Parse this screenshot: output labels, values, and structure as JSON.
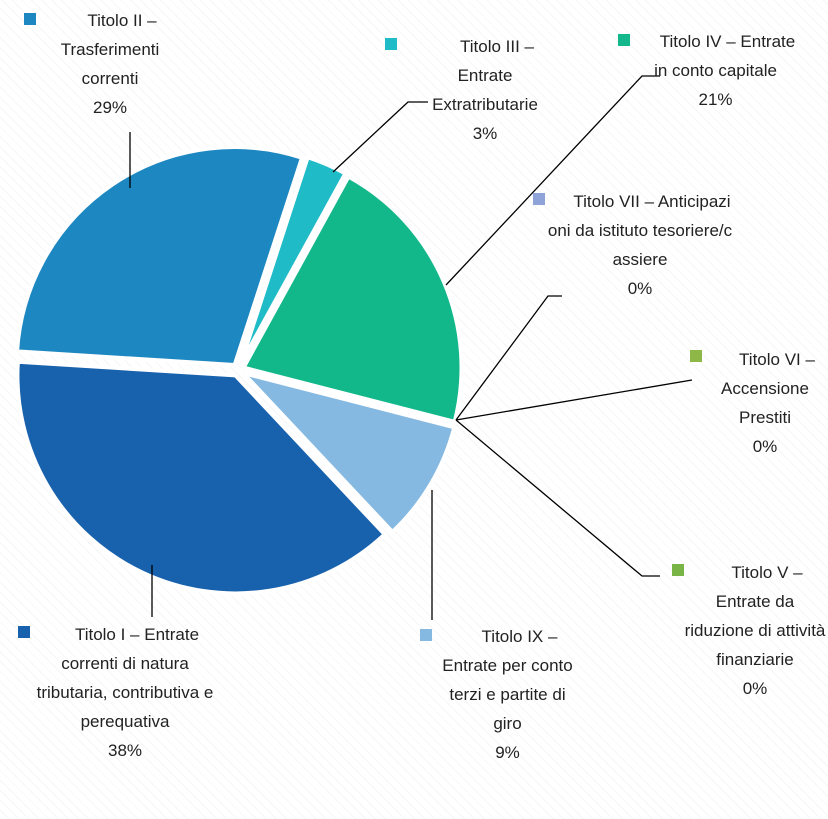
{
  "chart_data": {
    "type": "pie",
    "categories": [
      "Titolo III – Entrate Extratributarie",
      "Titolo IV – Entrate in conto capitale",
      "Titolo VII – Anticipazioni da istituto tesoriere/cassiere",
      "Titolo VI – Accensione Prestiti",
      "Titolo V – Entrate da riduzione di attività finanziarie",
      "Titolo IX – Entrate per conto terzi e partite di giro",
      "Titolo I – Entrate correnti di natura tributaria, contributiva e perequativa",
      "Titolo II – Trasferimenti correnti"
    ],
    "values": [
      3,
      21,
      0,
      0,
      0,
      9,
      38,
      29
    ],
    "value_labels": [
      "3%",
      "21%",
      "0%",
      "0%",
      "0%",
      "9%",
      "38%",
      "29%"
    ],
    "colors": [
      "#1fbcc8",
      "#12b78a",
      "#8ea4d8",
      "#8db848",
      "#79b546",
      "#86b9e1",
      "#1861ad",
      "#1d87c1"
    ]
  }
}
